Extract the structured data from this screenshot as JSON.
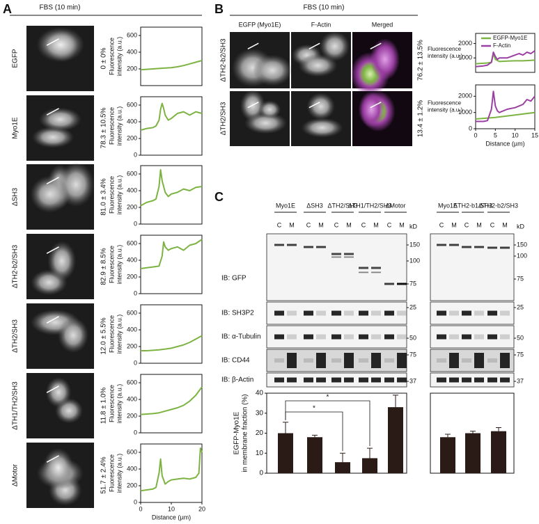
{
  "panel_labels": [
    "A",
    "B",
    "C"
  ],
  "panel_a": {
    "header": "FBS (10 min)",
    "rows": [
      {
        "label": "EGFP",
        "percent": "0 ± 0%"
      },
      {
        "label": "Myo1E",
        "percent": "78.3 ± 10.5%"
      },
      {
        "label": "ΔSH3",
        "percent": "81.0 ± 3.4%"
      },
      {
        "label": "ΔTH2-b2/SH3",
        "percent": "82.9 ± 8.5%"
      },
      {
        "label": "ΔTH2/SH3",
        "percent": "12.0 ± 5.5%"
      },
      {
        "label": "ΔTH1/TH2/SH3",
        "percent": "11.8 ± 1.0%"
      },
      {
        "label": "ΔMotor",
        "percent": "51.7 ± 2.4%"
      }
    ]
  },
  "panel_b": {
    "header": "FBS (10 min)",
    "columns": [
      "EGFP (Myo1E)",
      "F-Actin",
      "Merged"
    ],
    "rows": [
      {
        "label": "ΔTH2-b2/SH3",
        "percent": "76.2 ± 13.5%"
      },
      {
        "label": "ΔTH2/SH3",
        "percent": "13.4 ± 1.2%"
      }
    ]
  },
  "panel_c": {
    "fractions": [
      "C",
      "M"
    ],
    "kd_unit": "kD",
    "blots": [
      {
        "label": "IB: GFP",
        "left_markers": [
          "150",
          "100",
          "75"
        ],
        "right_markers": [
          "150",
          "100",
          "75"
        ]
      },
      {
        "label": "IB: SH3P2",
        "left_markers": [
          "25"
        ],
        "right_markers": [
          "25"
        ]
      },
      {
        "label": "IB: α-Tubulin",
        "left_markers": [
          "50"
        ],
        "right_markers": [
          "50"
        ]
      },
      {
        "label": "IB: CD44",
        "left_markers": [
          "75"
        ],
        "right_markers": [
          "75"
        ]
      },
      {
        "label": "IB: β-Actin",
        "left_markers": [
          "37"
        ],
        "right_markers": [
          "37"
        ]
      }
    ]
  },
  "chart_data": [
    {
      "type": "line",
      "ylabel": [
        "Fluorescence",
        "intensity (a.u.)"
      ],
      "xlim": [
        0,
        20
      ],
      "ylim": [
        0,
        700
      ],
      "yticks": [
        200,
        400,
        600
      ],
      "series": [
        {
          "color": "#7cb342",
          "x": [
            0,
            2,
            4,
            6,
            8,
            10,
            12,
            14,
            16,
            18,
            20
          ],
          "values": [
            190,
            195,
            200,
            205,
            210,
            215,
            225,
            240,
            260,
            280,
            300
          ]
        }
      ]
    },
    {
      "type": "line",
      "ylabel": [
        "Fluorescence",
        "intensity (a.u.)"
      ],
      "xlim": [
        0,
        20
      ],
      "ylim": [
        0,
        700
      ],
      "yticks": [
        0,
        200,
        400,
        600
      ],
      "series": [
        {
          "color": "#7cb342",
          "x": [
            0,
            2,
            4,
            5,
            6,
            6.5,
            7,
            7.5,
            8,
            9,
            10,
            12,
            14,
            16,
            18,
            20
          ],
          "values": [
            300,
            320,
            330,
            350,
            420,
            550,
            620,
            560,
            480,
            420,
            440,
            500,
            520,
            480,
            520,
            500
          ]
        }
      ]
    },
    {
      "type": "line",
      "ylabel": [
        "Fluorescence",
        "intensity (a.u.)"
      ],
      "xlim": [
        0,
        20
      ],
      "ylim": [
        0,
        700
      ],
      "yticks": [
        0,
        200,
        400,
        600
      ],
      "series": [
        {
          "color": "#7cb342",
          "x": [
            0,
            2,
            4,
            5,
            6,
            6.5,
            7,
            8,
            9,
            10,
            12,
            14,
            16,
            18,
            20
          ],
          "values": [
            220,
            260,
            280,
            300,
            450,
            650,
            520,
            380,
            330,
            360,
            380,
            420,
            400,
            440,
            450
          ]
        }
      ]
    },
    {
      "type": "line",
      "ylabel": [
        "Fluorescence",
        "intensity (a.u.)"
      ],
      "xlim": [
        0,
        20
      ],
      "ylim": [
        0,
        700
      ],
      "yticks": [
        0,
        200,
        400,
        600
      ],
      "series": [
        {
          "color": "#7cb342",
          "x": [
            0,
            2,
            4,
            6,
            7,
            7.5,
            8,
            9,
            10,
            12,
            14,
            16,
            18,
            20
          ],
          "values": [
            300,
            310,
            320,
            330,
            450,
            620,
            560,
            520,
            540,
            560,
            520,
            580,
            600,
            650
          ]
        }
      ]
    },
    {
      "type": "line",
      "ylabel": [
        "Fluorescence",
        "intensity (a.u.)"
      ],
      "xlim": [
        0,
        20
      ],
      "ylim": [
        0,
        700
      ],
      "yticks": [
        0,
        200,
        400,
        600
      ],
      "series": [
        {
          "color": "#7cb342",
          "x": [
            0,
            2,
            4,
            6,
            8,
            10,
            12,
            14,
            16,
            18,
            20
          ],
          "values": [
            150,
            150,
            155,
            160,
            170,
            180,
            200,
            220,
            250,
            290,
            330
          ]
        }
      ]
    },
    {
      "type": "line",
      "ylabel": [
        "Fluorescence",
        "intensity (a.u.)"
      ],
      "xlim": [
        0,
        20
      ],
      "ylim": [
        0,
        700
      ],
      "yticks": [
        0,
        200,
        400,
        600
      ],
      "series": [
        {
          "color": "#7cb342",
          "x": [
            0,
            2,
            4,
            6,
            8,
            10,
            12,
            14,
            16,
            18,
            20
          ],
          "values": [
            220,
            225,
            230,
            240,
            260,
            280,
            300,
            330,
            380,
            450,
            550
          ]
        }
      ]
    },
    {
      "type": "line",
      "ylabel": [
        "Fluorescence",
        "intensity (a.u.)"
      ],
      "xlabel": "Distance (µm)",
      "xlim": [
        0,
        20
      ],
      "ylim": [
        0,
        700
      ],
      "yticks": [
        0,
        200,
        400,
        600
      ],
      "xticks": [
        0,
        10,
        20
      ],
      "series": [
        {
          "color": "#7cb342",
          "x": [
            0,
            2,
            4,
            5,
            6,
            6.5,
            7,
            8,
            9,
            10,
            12,
            14,
            16,
            18,
            19,
            19.5,
            20
          ],
          "values": [
            140,
            150,
            160,
            180,
            350,
            520,
            320,
            220,
            250,
            270,
            280,
            290,
            280,
            300,
            350,
            650,
            600
          ]
        }
      ]
    },
    {
      "type": "line",
      "ylabel": [
        "Fluorescence",
        "intensity (a.u.)"
      ],
      "xlim": [
        0,
        15
      ],
      "ylim": [
        0,
        2700
      ],
      "yticks": [
        1000,
        2000
      ],
      "series": [
        {
          "name": "EGFP-Myo1E",
          "color": "#7cb342",
          "x": [
            0,
            3,
            4,
            4.5,
            5,
            6,
            8,
            10,
            12,
            15
          ],
          "values": [
            600,
            650,
            700,
            1300,
            900,
            750,
            780,
            800,
            800,
            850
          ]
        },
        {
          "name": "F-Actin",
          "color": "#9b3fa3",
          "x": [
            0,
            2,
            3,
            4,
            4.5,
            5,
            5.5,
            6,
            8,
            10,
            11,
            12,
            13,
            14,
            15
          ],
          "values": [
            400,
            450,
            500,
            700,
            1400,
            1100,
            900,
            1000,
            1000,
            1200,
            1300,
            1200,
            1400,
            1300,
            1500
          ]
        }
      ]
    },
    {
      "type": "line",
      "ylabel": [
        "Fluorescence",
        "intensity (a.u.)"
      ],
      "xlabel": "Distance (µm)",
      "xlim": [
        0,
        15
      ],
      "ylim": [
        0,
        2700
      ],
      "yticks": [
        0,
        1000,
        2000
      ],
      "xticks": [
        0,
        5,
        10,
        15
      ],
      "series": [
        {
          "color": "#7cb342",
          "x": [
            0,
            5,
            10,
            15
          ],
          "values": [
            600,
            700,
            850,
            1000
          ]
        },
        {
          "color": "#9b3fa3",
          "x": [
            0,
            2,
            3,
            4,
            4.5,
            5,
            5.5,
            6,
            8,
            10,
            12,
            13,
            14,
            15
          ],
          "values": [
            450,
            450,
            500,
            1200,
            2300,
            1400,
            1100,
            1000,
            1200,
            1300,
            1500,
            1800,
            1700,
            2000
          ]
        }
      ]
    },
    {
      "type": "bar",
      "ylabel": [
        "EGFP-Myo1E",
        "in membrane fraction (%)"
      ],
      "categories": [
        "Myo1E",
        "ΔSH3",
        "ΔTH2/SH3",
        "ΔTH1/TH2/SH3",
        "ΔMotor"
      ],
      "values": [
        20,
        18,
        5.5,
        7.5,
        33
      ],
      "errors": [
        5.5,
        1,
        4.5,
        5,
        6
      ],
      "color": "#2b1b16",
      "ylim": [
        0,
        40
      ],
      "yticks": [
        0,
        10,
        20,
        30,
        40
      ],
      "annotations": [
        "*",
        "*"
      ]
    },
    {
      "type": "bar",
      "categories": [
        "Myo1E",
        "ΔTH2-b1/SH3",
        "ΔTH2-b2/SH3"
      ],
      "values": [
        18,
        20,
        21
      ],
      "errors": [
        1.5,
        1,
        1.8
      ],
      "color": "#2b1b16",
      "ylim": [
        0,
        40
      ]
    }
  ]
}
